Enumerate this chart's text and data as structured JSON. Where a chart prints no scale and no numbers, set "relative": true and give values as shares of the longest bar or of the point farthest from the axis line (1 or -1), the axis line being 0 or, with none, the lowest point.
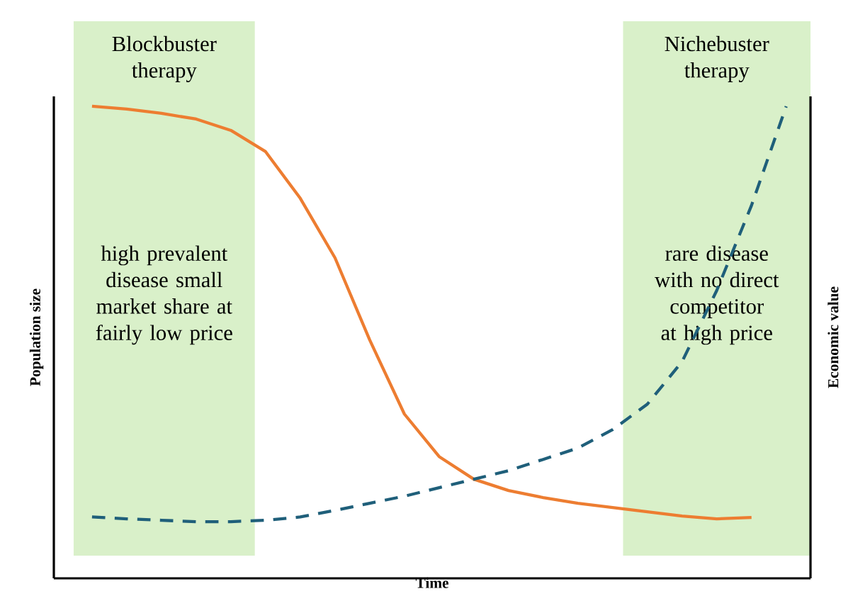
{
  "chart_data": {
    "type": "line",
    "relative": true,
    "xlabel": "Time",
    "ylabel": "Population size",
    "y2label": "Economic value",
    "categories": [
      null,
      null,
      null,
      null,
      null,
      null,
      null,
      null,
      null,
      null,
      null,
      null,
      null,
      null,
      null,
      null,
      null,
      null,
      null,
      null,
      null
    ],
    "series": [
      {
        "color": "#ed7d31",
        "line_style": "solid",
        "values": [
          1.0,
          0.994,
          0.985,
          0.973,
          0.949,
          0.904,
          0.805,
          0.679,
          0.505,
          0.348,
          0.258,
          0.21,
          0.186,
          0.171,
          0.159,
          0.15,
          0.141,
          0.132,
          0.126,
          0.129,
          null
        ]
      },
      {
        "color": "#1f5f7a",
        "line_style": "dashed",
        "values": [
          0.13,
          0.126,
          0.123,
          0.12,
          0.12,
          0.123,
          0.13,
          0.144,
          0.159,
          0.174,
          0.192,
          0.21,
          0.228,
          0.252,
          0.276,
          0.315,
          0.369,
          0.459,
          0.61,
          0.79,
          1.0
        ]
      }
    ],
    "annotations": [
      "Blockbuster therapy",
      "high prevalent disease small market share at fairly low price",
      "Nichebuster therapy",
      "rare disease with no direct competitor at high price"
    ]
  }
}
